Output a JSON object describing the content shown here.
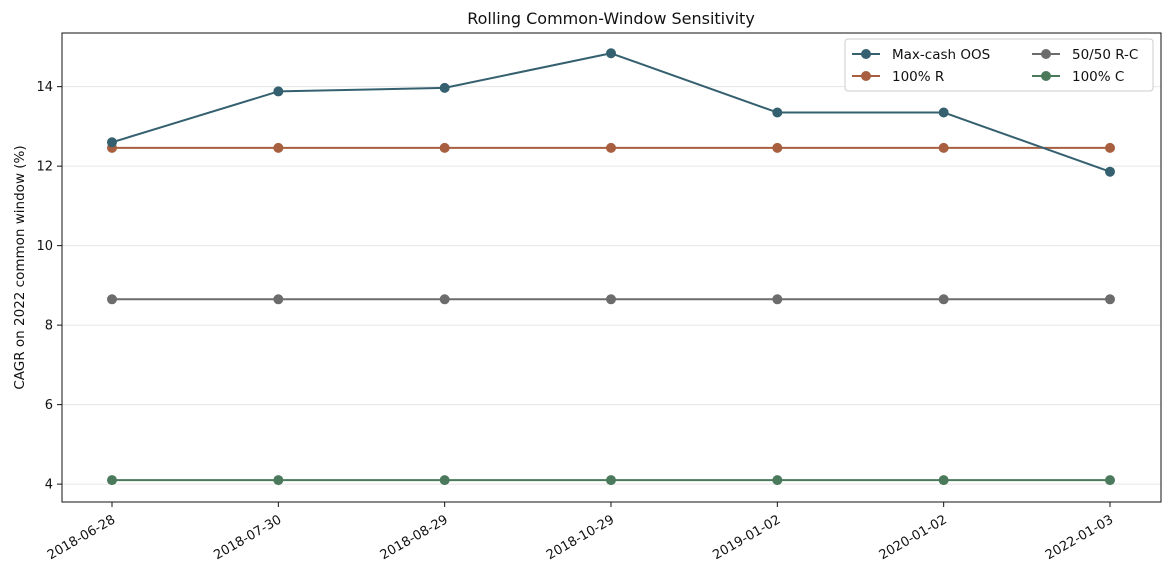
{
  "chart_data": {
    "type": "line",
    "title": "Rolling Common-Window Sensitivity",
    "xlabel": "",
    "ylabel": "CAGR on 2022 common window (%)",
    "categories": [
      "2018-06-28",
      "2018-07-30",
      "2018-08-29",
      "2018-10-29",
      "2019-01-02",
      "2020-01-02",
      "2022-01-03"
    ],
    "ylim": [
      3.55,
      15.35
    ],
    "yticks": [
      4,
      6,
      8,
      10,
      12,
      14
    ],
    "grid": "y",
    "legend": "top-right",
    "series": [
      {
        "name": "Max-cash OOS",
        "color": "#35606f",
        "values": [
          12.6,
          13.88,
          13.97,
          14.84,
          13.35,
          13.35,
          11.86
        ]
      },
      {
        "name": "100% R",
        "color": "#a85f3f",
        "values": [
          12.46,
          12.46,
          12.46,
          12.46,
          12.46,
          12.46,
          12.46
        ]
      },
      {
        "name": "50/50 R-C",
        "color": "#6c6c6c",
        "values": [
          8.65,
          8.65,
          8.65,
          8.65,
          8.65,
          8.65,
          8.65
        ]
      },
      {
        "name": "100% C",
        "color": "#4a7a5b",
        "values": [
          4.1,
          4.1,
          4.1,
          4.1,
          4.1,
          4.1,
          4.1
        ]
      }
    ]
  }
}
